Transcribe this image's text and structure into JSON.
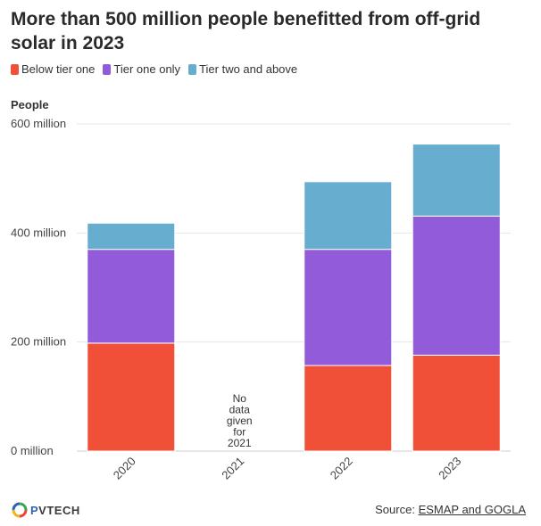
{
  "title": "More than 500 million people benefitted from off-grid solar in 2023",
  "legend": [
    {
      "label": "Below tier one",
      "color": "#f05038"
    },
    {
      "label": "Tier one only",
      "color": "#915bd9"
    },
    {
      "label": "Tier two and above",
      "color": "#66adcf"
    }
  ],
  "chart_data": {
    "type": "bar",
    "stacked": true,
    "title": "More than 500 million people benefitted from off-grid solar in 2023",
    "xlabel": "",
    "ylabel": "People",
    "ylim": [
      0,
      600
    ],
    "yticks": [
      0,
      200,
      400,
      600
    ],
    "ytick_labels": [
      "0 million",
      "200 million",
      "400 million",
      "600 million"
    ],
    "categories": [
      "2020",
      "2021",
      "2022",
      "2023"
    ],
    "series": [
      {
        "name": "Below tier one",
        "color": "#f05038",
        "values": [
          198,
          null,
          157,
          176
        ]
      },
      {
        "name": "Tier one only",
        "color": "#915bd9",
        "values": [
          172,
          null,
          213,
          255
        ]
      },
      {
        "name": "Tier two and above",
        "color": "#66adcf",
        "values": [
          48,
          null,
          124,
          132
        ]
      }
    ],
    "annotations": [
      {
        "category": "2021",
        "lines": [
          "No",
          "data",
          "given",
          "for",
          "2021"
        ]
      }
    ],
    "grid": true
  },
  "footer": {
    "logo_text_p": "P",
    "logo_text_rest": "VTECH",
    "source_prefix": "Source: ",
    "source_link": "ESMAP and GOGLA"
  }
}
